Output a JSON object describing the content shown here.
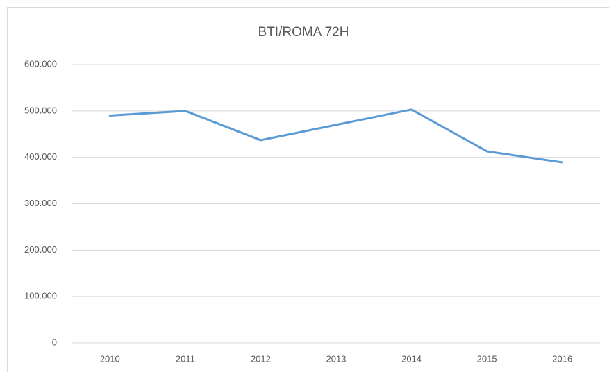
{
  "chart_data": {
    "type": "line",
    "title": "BTI/ROMA 72H",
    "categories": [
      "2010",
      "2011",
      "2012",
      "2013",
      "2014",
      "2015",
      "2016"
    ],
    "series": [
      {
        "name": "BTI/ROMA 72H",
        "color": "#5b9bd5",
        "values": [
          490000,
          500000,
          437000,
          470000,
          503000,
          413000,
          389000
        ]
      }
    ],
    "ylim": [
      0,
      600000
    ],
    "yticks": [
      0,
      {
        "value": 100000,
        "label": "100.000"
      },
      {
        "value": 200000,
        "label": "200.000"
      },
      {
        "value": 300000,
        "label": "300.000"
      },
      {
        "value": 400000,
        "label": "400.000"
      },
      {
        "value": 500000,
        "label": "500.000"
      },
      {
        "value": 600000,
        "label": "600.000"
      }
    ],
    "grid": true
  }
}
